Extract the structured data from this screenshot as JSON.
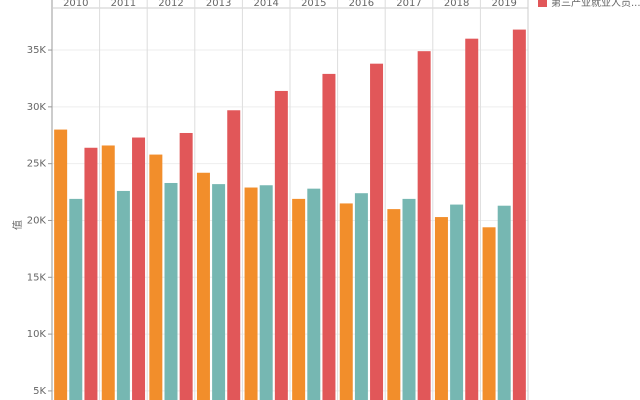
{
  "chart_data": {
    "type": "bar",
    "y_label": "值",
    "categories": [
      "2010",
      "2011",
      "2012",
      "2013",
      "2014",
      "2015",
      "2016",
      "2017",
      "2018",
      "2019"
    ],
    "series": [
      {
        "color": "#f28e2b",
        "values": [
          28000,
          26600,
          25800,
          24200,
          22900,
          21900,
          21500,
          21000,
          20300,
          19400
        ]
      },
      {
        "color": "#76b7b2",
        "values": [
          21900,
          22600,
          23300,
          23200,
          23100,
          22800,
          22400,
          21900,
          21400,
          21300
        ]
      },
      {
        "name": "第三产业就业人员...",
        "color": "#e15759",
        "values": [
          26400,
          27300,
          27700,
          29700,
          31400,
          32900,
          33800,
          34900,
          36000,
          36800
        ]
      }
    ],
    "ylim": [
      4200,
      38700
    ],
    "yticks": [
      {
        "value": 5000,
        "label": "5K"
      },
      {
        "value": 10000,
        "label": "10K"
      },
      {
        "value": 15000,
        "label": "15K"
      },
      {
        "value": 20000,
        "label": "20K"
      },
      {
        "value": 25000,
        "label": "25K"
      },
      {
        "value": 30000,
        "label": "30K"
      },
      {
        "value": 35000,
        "label": "35K"
      }
    ],
    "grid": true
  }
}
